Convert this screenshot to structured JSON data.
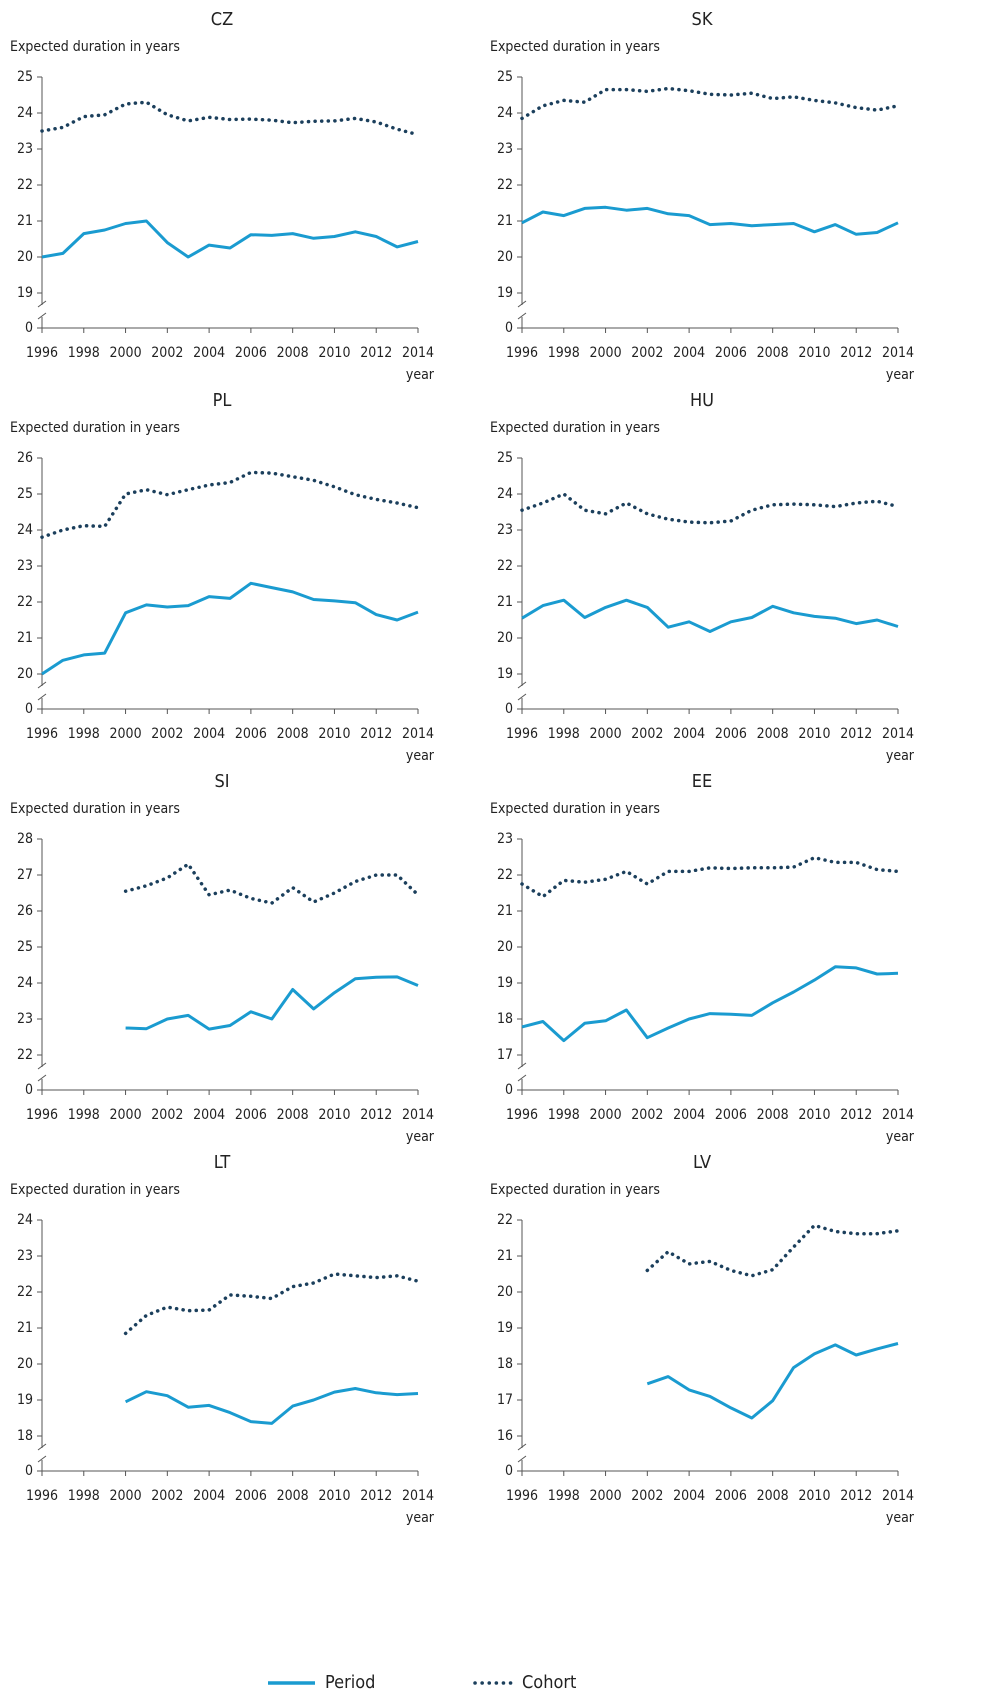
{
  "chart_data": [
    {
      "type": "line",
      "title": "CZ",
      "y_label": "Expected duration in years",
      "x_label": "year",
      "x": [
        1996,
        1997,
        1998,
        1999,
        2000,
        2001,
        2002,
        2003,
        2004,
        2005,
        2006,
        2007,
        2008,
        2009,
        2010,
        2011,
        2012,
        2013,
        2014
      ],
      "xlim": [
        1996,
        2014
      ],
      "xticks": [
        1996,
        1998,
        2000,
        2002,
        2004,
        2006,
        2008,
        2010,
        2012,
        2014
      ],
      "ylim": [
        19,
        25
      ],
      "yticks": [
        0,
        19,
        20,
        21,
        22,
        23,
        24,
        25
      ],
      "axis_break": true,
      "series": [
        {
          "name": "Period",
          "color": "#1a9bd0",
          "style": "solid",
          "values": [
            20.0,
            20.1,
            20.65,
            20.75,
            20.93,
            21.0,
            20.4,
            20.0,
            20.33,
            20.25,
            20.62,
            20.6,
            20.65,
            20.52,
            20.57,
            20.7,
            20.57,
            20.28,
            20.43
          ]
        },
        {
          "name": "Cohort",
          "color": "#1b3f5c",
          "style": "dotted",
          "values": [
            23.5,
            23.6,
            23.9,
            23.95,
            24.25,
            24.3,
            23.95,
            23.78,
            23.88,
            23.82,
            23.83,
            23.8,
            23.73,
            23.77,
            23.78,
            23.85,
            23.75,
            23.55,
            23.4
          ]
        }
      ]
    },
    {
      "type": "line",
      "title": "SK",
      "y_label": "Expected duration in years",
      "x_label": "year",
      "x": [
        1996,
        1997,
        1998,
        1999,
        2000,
        2001,
        2002,
        2003,
        2004,
        2005,
        2006,
        2007,
        2008,
        2009,
        2010,
        2011,
        2012,
        2013,
        2014
      ],
      "xlim": [
        1996,
        2014
      ],
      "xticks": [
        1996,
        1998,
        2000,
        2002,
        2004,
        2006,
        2008,
        2010,
        2012,
        2014
      ],
      "ylim": [
        19,
        25
      ],
      "yticks": [
        0,
        19,
        20,
        21,
        22,
        23,
        24,
        25
      ],
      "axis_break": true,
      "series": [
        {
          "name": "Period",
          "color": "#1a9bd0",
          "style": "solid",
          "values": [
            20.95,
            21.25,
            21.15,
            21.35,
            21.38,
            21.3,
            21.35,
            21.2,
            21.15,
            20.9,
            20.93,
            20.87,
            20.9,
            20.93,
            20.7,
            20.9,
            20.63,
            20.68,
            20.95
          ]
        },
        {
          "name": "Cohort",
          "color": "#1b3f5c",
          "style": "dotted",
          "values": [
            23.85,
            24.2,
            24.35,
            24.3,
            24.65,
            24.65,
            24.6,
            24.68,
            24.62,
            24.52,
            24.5,
            24.55,
            24.4,
            24.45,
            24.35,
            24.28,
            24.15,
            24.08,
            24.2
          ]
        }
      ]
    },
    {
      "type": "line",
      "title": "PL",
      "y_label": "Expected duration in years",
      "x_label": "year",
      "x": [
        1996,
        1997,
        1998,
        1999,
        2000,
        2001,
        2002,
        2003,
        2004,
        2005,
        2006,
        2007,
        2008,
        2009,
        2010,
        2011,
        2012,
        2013,
        2014
      ],
      "xlim": [
        1996,
        2014
      ],
      "xticks": [
        1996,
        1998,
        2000,
        2002,
        2004,
        2006,
        2008,
        2010,
        2012,
        2014
      ],
      "ylim": [
        20,
        26
      ],
      "yticks": [
        0,
        20,
        21,
        22,
        23,
        24,
        25,
        26
      ],
      "axis_break": true,
      "series": [
        {
          "name": "Period",
          "color": "#1a9bd0",
          "style": "solid",
          "values": [
            20.0,
            20.38,
            20.53,
            20.58,
            21.7,
            21.92,
            21.86,
            21.9,
            22.15,
            22.1,
            22.52,
            22.4,
            22.28,
            22.07,
            22.03,
            21.98,
            21.65,
            21.5,
            21.72
          ]
        },
        {
          "name": "Cohort",
          "color": "#1b3f5c",
          "style": "dotted",
          "values": [
            23.8,
            24.0,
            24.12,
            24.1,
            25.0,
            25.12,
            24.98,
            25.12,
            25.25,
            25.32,
            25.6,
            25.58,
            25.48,
            25.38,
            25.2,
            24.98,
            24.85,
            24.75,
            24.62
          ]
        }
      ]
    },
    {
      "type": "line",
      "title": "HU",
      "y_label": "Expected duration in years",
      "x_label": "year",
      "x": [
        1996,
        1997,
        1998,
        1999,
        2000,
        2001,
        2002,
        2003,
        2004,
        2005,
        2006,
        2007,
        2008,
        2009,
        2010,
        2011,
        2012,
        2013,
        2014
      ],
      "xlim": [
        1996,
        2014
      ],
      "xticks": [
        1996,
        1998,
        2000,
        2002,
        2004,
        2006,
        2008,
        2010,
        2012,
        2014
      ],
      "ylim": [
        19,
        25
      ],
      "yticks": [
        0,
        19,
        20,
        21,
        22,
        23,
        24,
        25
      ],
      "axis_break": true,
      "series": [
        {
          "name": "Period",
          "color": "#1a9bd0",
          "style": "solid",
          "values": [
            20.55,
            20.9,
            21.05,
            20.57,
            20.85,
            21.05,
            20.85,
            20.3,
            20.45,
            20.18,
            20.45,
            20.57,
            20.88,
            20.7,
            20.6,
            20.55,
            20.4,
            20.5,
            20.32
          ]
        },
        {
          "name": "Cohort",
          "color": "#1b3f5c",
          "style": "dotted",
          "values": [
            23.55,
            23.75,
            24.0,
            23.55,
            23.45,
            23.75,
            23.45,
            23.3,
            23.22,
            23.2,
            23.25,
            23.55,
            23.7,
            23.72,
            23.7,
            23.65,
            23.75,
            23.8,
            23.65
          ]
        }
      ]
    },
    {
      "type": "line",
      "title": "SI",
      "y_label": "Expected duration in years",
      "x_label": "year",
      "x": [
        1996,
        1997,
        1998,
        1999,
        2000,
        2001,
        2002,
        2003,
        2004,
        2005,
        2006,
        2007,
        2008,
        2009,
        2010,
        2011,
        2012,
        2013,
        2014
      ],
      "xlim": [
        1996,
        2014
      ],
      "xticks": [
        1996,
        1998,
        2000,
        2002,
        2004,
        2006,
        2008,
        2010,
        2012,
        2014
      ],
      "ylim": [
        22,
        28
      ],
      "yticks": [
        0,
        22,
        23,
        24,
        25,
        26,
        27,
        28
      ],
      "axis_break": true,
      "series": [
        {
          "name": "Period",
          "color": "#1a9bd0",
          "style": "solid",
          "values": [
            null,
            null,
            null,
            null,
            22.75,
            22.73,
            23.0,
            23.1,
            22.72,
            22.82,
            23.2,
            23.0,
            23.82,
            23.28,
            23.73,
            24.12,
            24.16,
            24.17,
            23.93
          ]
        },
        {
          "name": "Cohort",
          "color": "#1b3f5c",
          "style": "dotted",
          "values": [
            null,
            null,
            null,
            null,
            26.55,
            26.7,
            26.92,
            27.3,
            26.45,
            26.58,
            26.35,
            26.22,
            26.65,
            26.25,
            26.5,
            26.82,
            27.0,
            27.0,
            26.45
          ]
        }
      ]
    },
    {
      "type": "line",
      "title": "EE",
      "y_label": "Expected duration in years",
      "x_label": "year",
      "x": [
        1996,
        1997,
        1998,
        1999,
        2000,
        2001,
        2002,
        2003,
        2004,
        2005,
        2006,
        2007,
        2008,
        2009,
        2010,
        2011,
        2012,
        2013,
        2014
      ],
      "xlim": [
        1996,
        2014
      ],
      "xticks": [
        1996,
        1998,
        2000,
        2002,
        2004,
        2006,
        2008,
        2010,
        2012,
        2014
      ],
      "ylim": [
        17,
        23
      ],
      "yticks": [
        0,
        17,
        18,
        19,
        20,
        21,
        22,
        23
      ],
      "axis_break": true,
      "series": [
        {
          "name": "Period",
          "color": "#1a9bd0",
          "style": "solid",
          "values": [
            17.78,
            17.93,
            17.4,
            17.88,
            17.95,
            18.25,
            17.48,
            17.75,
            18.0,
            18.15,
            18.13,
            18.1,
            18.45,
            18.75,
            19.08,
            19.45,
            19.42,
            19.25,
            19.27
          ]
        },
        {
          "name": "Cohort",
          "color": "#1b3f5c",
          "style": "dotted",
          "values": [
            21.75,
            21.4,
            21.85,
            21.8,
            21.88,
            22.1,
            21.75,
            22.1,
            22.1,
            22.2,
            22.18,
            22.2,
            22.2,
            22.22,
            22.48,
            22.35,
            22.35,
            22.15,
            22.1
          ]
        }
      ]
    },
    {
      "type": "line",
      "title": "LT",
      "y_label": "Expected duration in years",
      "x_label": "year",
      "x": [
        1996,
        1997,
        1998,
        1999,
        2000,
        2001,
        2002,
        2003,
        2004,
        2005,
        2006,
        2007,
        2008,
        2009,
        2010,
        2011,
        2012,
        2013,
        2014
      ],
      "xlim": [
        1996,
        2014
      ],
      "xticks": [
        1996,
        1998,
        2000,
        2002,
        2004,
        2006,
        2008,
        2010,
        2012,
        2014
      ],
      "ylim": [
        18,
        24
      ],
      "yticks": [
        0,
        18,
        19,
        20,
        21,
        22,
        23,
        24
      ],
      "axis_break": true,
      "series": [
        {
          "name": "Period",
          "color": "#1a9bd0",
          "style": "solid",
          "values": [
            null,
            null,
            null,
            null,
            18.95,
            19.23,
            19.12,
            18.8,
            18.85,
            18.65,
            18.4,
            18.35,
            18.83,
            19.0,
            19.22,
            19.32,
            19.2,
            19.15,
            19.18
          ]
        },
        {
          "name": "Cohort",
          "color": "#1b3f5c",
          "style": "dotted",
          "values": [
            null,
            null,
            null,
            null,
            20.85,
            21.35,
            21.58,
            21.48,
            21.5,
            21.92,
            21.88,
            21.82,
            22.15,
            22.25,
            22.5,
            22.45,
            22.4,
            22.45,
            22.3
          ]
        }
      ]
    },
    {
      "type": "line",
      "title": "LV",
      "y_label": "Expected duration in years",
      "x_label": "year",
      "x": [
        1996,
        1997,
        1998,
        1999,
        2000,
        2001,
        2002,
        2003,
        2004,
        2005,
        2006,
        2007,
        2008,
        2009,
        2010,
        2011,
        2012,
        2013,
        2014
      ],
      "xlim": [
        1996,
        2014
      ],
      "xticks": [
        1996,
        1998,
        2000,
        2002,
        2004,
        2006,
        2008,
        2010,
        2012,
        2014
      ],
      "ylim": [
        16,
        22
      ],
      "yticks": [
        0,
        16,
        17,
        18,
        19,
        20,
        21,
        22
      ],
      "axis_break": true,
      "series": [
        {
          "name": "Period",
          "color": "#1a9bd0",
          "style": "solid",
          "values": [
            null,
            null,
            null,
            null,
            null,
            null,
            17.45,
            17.65,
            17.28,
            17.1,
            16.78,
            16.5,
            16.98,
            17.9,
            18.28,
            18.53,
            18.25,
            18.42,
            18.57
          ]
        },
        {
          "name": "Cohort",
          "color": "#1b3f5c",
          "style": "dotted",
          "values": [
            null,
            null,
            null,
            null,
            null,
            null,
            20.6,
            21.12,
            20.78,
            20.85,
            20.6,
            20.45,
            20.62,
            21.25,
            21.85,
            21.68,
            21.62,
            21.62,
            21.7
          ]
        }
      ]
    }
  ]
}
